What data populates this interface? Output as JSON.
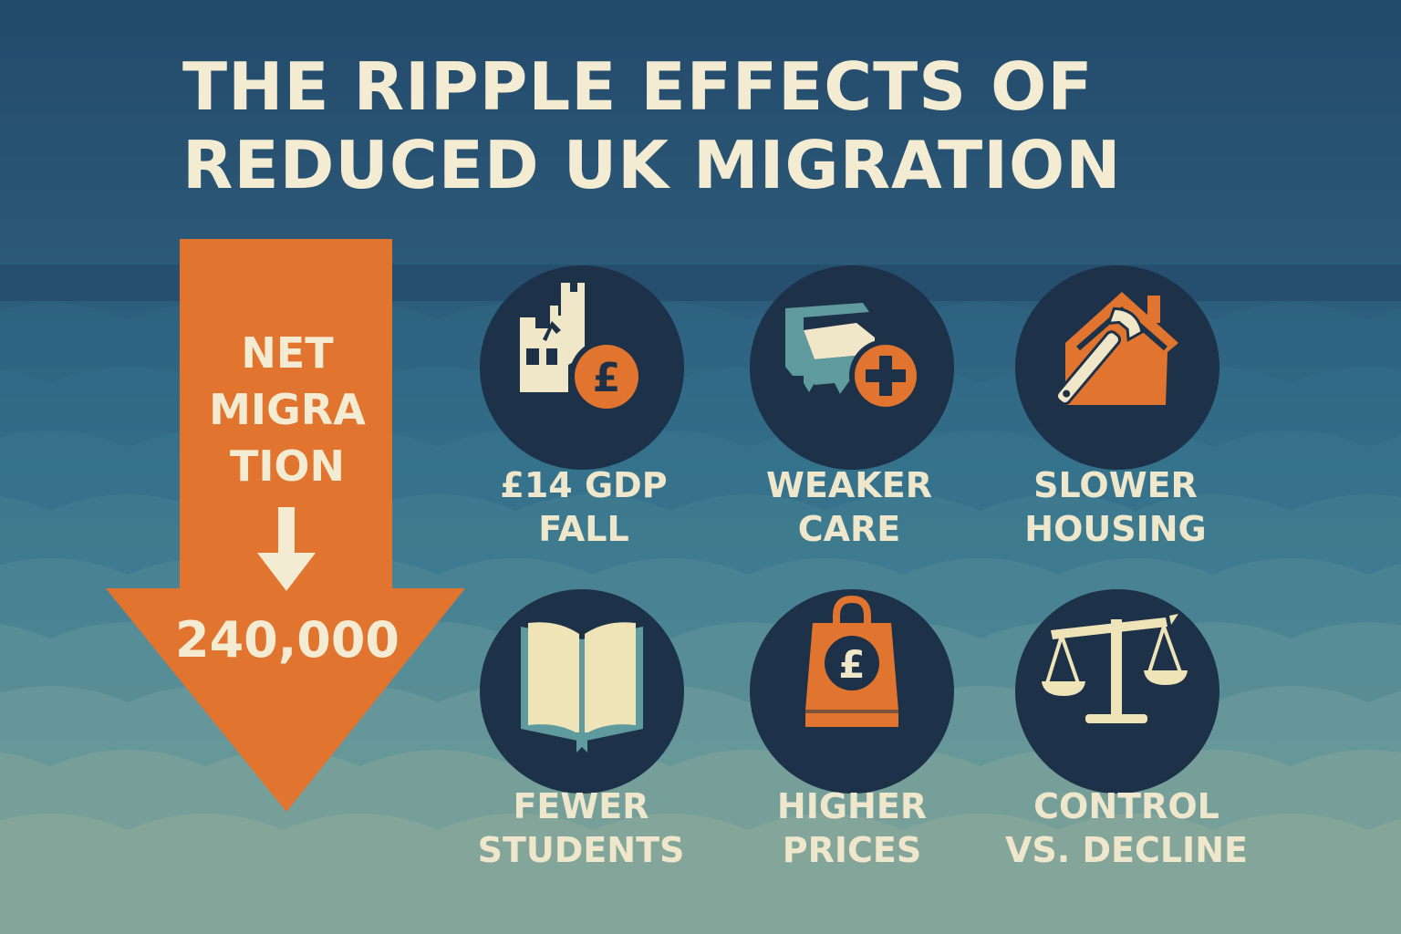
{
  "title": {
    "line1": "THE RIPPLE EFFECTS OF",
    "line2": "REDUCED UK MIGRATION"
  },
  "arrow": {
    "label_lines": [
      "NET",
      "MIGRA",
      "TION"
    ],
    "value": "240,000",
    "color": "#e1742f"
  },
  "effects": [
    {
      "icon": "factory-pound-icon",
      "lines": [
        "£14 GDP",
        "FALL"
      ]
    },
    {
      "icon": "hospital-bed-cross-icon",
      "lines": [
        "WEAKER",
        "CARE"
      ]
    },
    {
      "icon": "house-wrench-icon",
      "lines": [
        "SLOWER",
        "HOUSING"
      ]
    },
    {
      "icon": "open-book-icon",
      "lines": [
        "FEWER",
        "STUDENTS"
      ]
    },
    {
      "icon": "shopping-bag-pound-icon",
      "lines": [
        "HIGHER",
        "PRICES"
      ]
    },
    {
      "icon": "balance-scale-icon",
      "lines": [
        "CONTROL",
        "VS. DECLINE"
      ]
    }
  ],
  "colors": {
    "accent_orange": "#e1742f",
    "cream": "#f4ecd2",
    "circle_dark": "#1d3148",
    "teal": "#5f9b9e"
  }
}
